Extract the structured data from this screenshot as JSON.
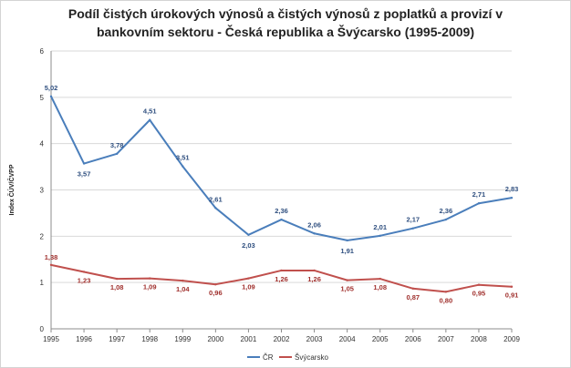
{
  "chart_data": {
    "type": "line",
    "title_lines": [
      "Podíl čistých úrokových výnosů a čistých výnosů z poplatků a provizí  v",
      "bankovním sektoru - Česká republika a Švýcarsko (1995-2009)"
    ],
    "ylabel": "Index ČÚV/ČVPP",
    "xlabel": "",
    "ylim": [
      0,
      6
    ],
    "yticks": [
      "0",
      "1",
      "2",
      "3",
      "4",
      "5",
      "6"
    ],
    "categories": [
      "1995",
      "1996",
      "1997",
      "1998",
      "1999",
      "2000",
      "2001",
      "2002",
      "2003",
      "2004",
      "2005",
      "2006",
      "2007",
      "2008",
      "2009"
    ],
    "grid": true,
    "legend_position": "bottom",
    "series": [
      {
        "name": "ČR",
        "color": "#4a7ebb",
        "label_color": "#2f4f7f",
        "values": [
          5.02,
          3.57,
          3.78,
          4.51,
          3.51,
          2.61,
          2.03,
          2.36,
          2.06,
          1.91,
          2.01,
          2.17,
          2.36,
          2.71,
          2.83
        ],
        "labels": [
          "5,02",
          "3,57",
          "3,78",
          "4,51",
          "3,51",
          "2,61",
          "2,03",
          "2,36",
          "2,06",
          "1,91",
          "2,01",
          "2,17",
          "2,36",
          "2,71",
          "2,83"
        ]
      },
      {
        "name": "Švýcarsko",
        "color": "#c0504d",
        "label_color": "#a0302d",
        "values": [
          1.38,
          1.23,
          1.08,
          1.09,
          1.04,
          0.96,
          1.09,
          1.26,
          1.26,
          1.05,
          1.08,
          0.87,
          0.8,
          0.95,
          0.91
        ],
        "labels": [
          "1,38",
          "1,23",
          "1,08",
          "1,09",
          "1,04",
          "0,96",
          "1,09",
          "1,26",
          "1,26",
          "1,05",
          "1,08",
          "0,87",
          "0,80",
          "0,95",
          "0,91"
        ]
      }
    ]
  }
}
